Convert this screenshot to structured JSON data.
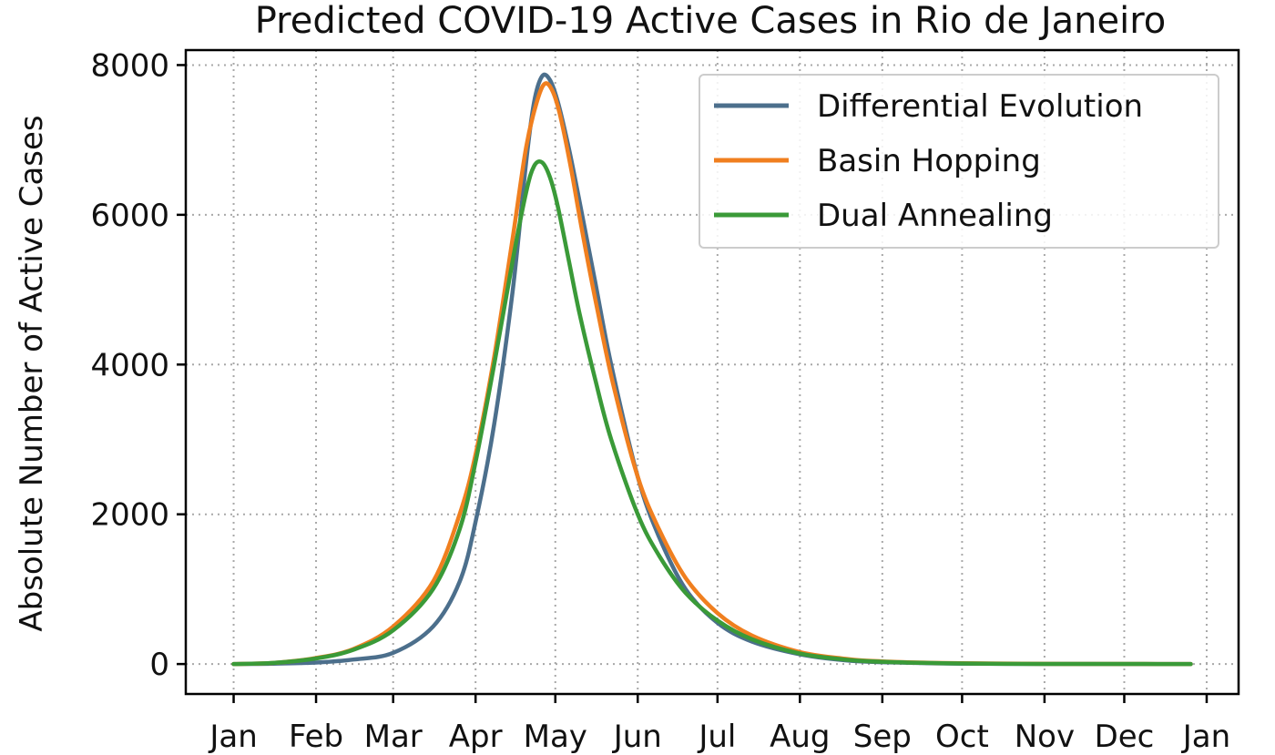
{
  "chart_data": {
    "type": "line",
    "title": "Predicted COVID-19 Active Cases in Rio de Janeiro",
    "xlabel": "",
    "ylabel": "Absolute Number of Active Cases",
    "x_ticks": [
      "Jan",
      "Feb",
      "Mar",
      "Apr",
      "May",
      "Jun",
      "Jul",
      "Aug",
      "Sep",
      "Oct",
      "Nov",
      "Dec",
      "Jan"
    ],
    "x_tick_days": [
      0,
      31,
      60,
      91,
      121,
      152,
      182,
      213,
      244,
      274,
      305,
      335,
      366
    ],
    "x_unit": "day of year 2020 (Jan 1 = 0)",
    "xlim": [
      -18,
      378
    ],
    "ylim": [
      -400,
      8200
    ],
    "y_ticks": [
      0,
      2000,
      4000,
      6000,
      8000
    ],
    "grid": true,
    "legend": "top-right",
    "series": [
      {
        "name": "Differential Evolution",
        "color": "#4c6f8c",
        "x": [
          0,
          15,
          31,
          45,
          60,
          75,
          85,
          91,
          98,
          105,
          110,
          113,
          116,
          119,
          122,
          126,
          130,
          136,
          142,
          152,
          160,
          170,
          182,
          195,
          213,
          230,
          244,
          274,
          305,
          335,
          360
        ],
        "values": [
          0,
          5,
          20,
          60,
          150,
          500,
          1100,
          1900,
          3200,
          5000,
          6700,
          7500,
          7850,
          7800,
          7500,
          6900,
          6200,
          5100,
          4000,
          2500,
          1700,
          1000,
          550,
          300,
          130,
          50,
          25,
          5,
          2,
          0,
          0
        ]
      },
      {
        "name": "Basin Hopping",
        "color": "#f07f1f",
        "x": [
          0,
          15,
          31,
          45,
          60,
          75,
          85,
          91,
          98,
          105,
          110,
          114,
          117,
          120,
          123,
          127,
          131,
          137,
          143,
          152,
          160,
          170,
          182,
          195,
          213,
          230,
          244,
          274,
          305,
          335,
          360
        ],
        "values": [
          0,
          15,
          80,
          200,
          500,
          1100,
          2000,
          2800,
          4100,
          5700,
          6900,
          7500,
          7750,
          7650,
          7300,
          6600,
          5800,
          4700,
          3700,
          2500,
          1800,
          1150,
          680,
          380,
          160,
          70,
          35,
          10,
          3,
          1,
          0
        ]
      },
      {
        "name": "Dual Annealing",
        "color": "#3a9a38",
        "x": [
          0,
          15,
          31,
          45,
          60,
          75,
          85,
          91,
          98,
          105,
          110,
          113,
          116,
          119,
          122,
          126,
          130,
          136,
          142,
          152,
          160,
          170,
          182,
          195,
          213,
          230,
          244,
          274,
          305,
          335,
          360
        ],
        "values": [
          0,
          15,
          75,
          190,
          450,
          1000,
          1800,
          2700,
          4000,
          5400,
          6300,
          6650,
          6700,
          6500,
          6100,
          5400,
          4700,
          3800,
          3000,
          2000,
          1450,
          950,
          580,
          330,
          140,
          60,
          30,
          8,
          2,
          1,
          0
        ]
      }
    ]
  }
}
